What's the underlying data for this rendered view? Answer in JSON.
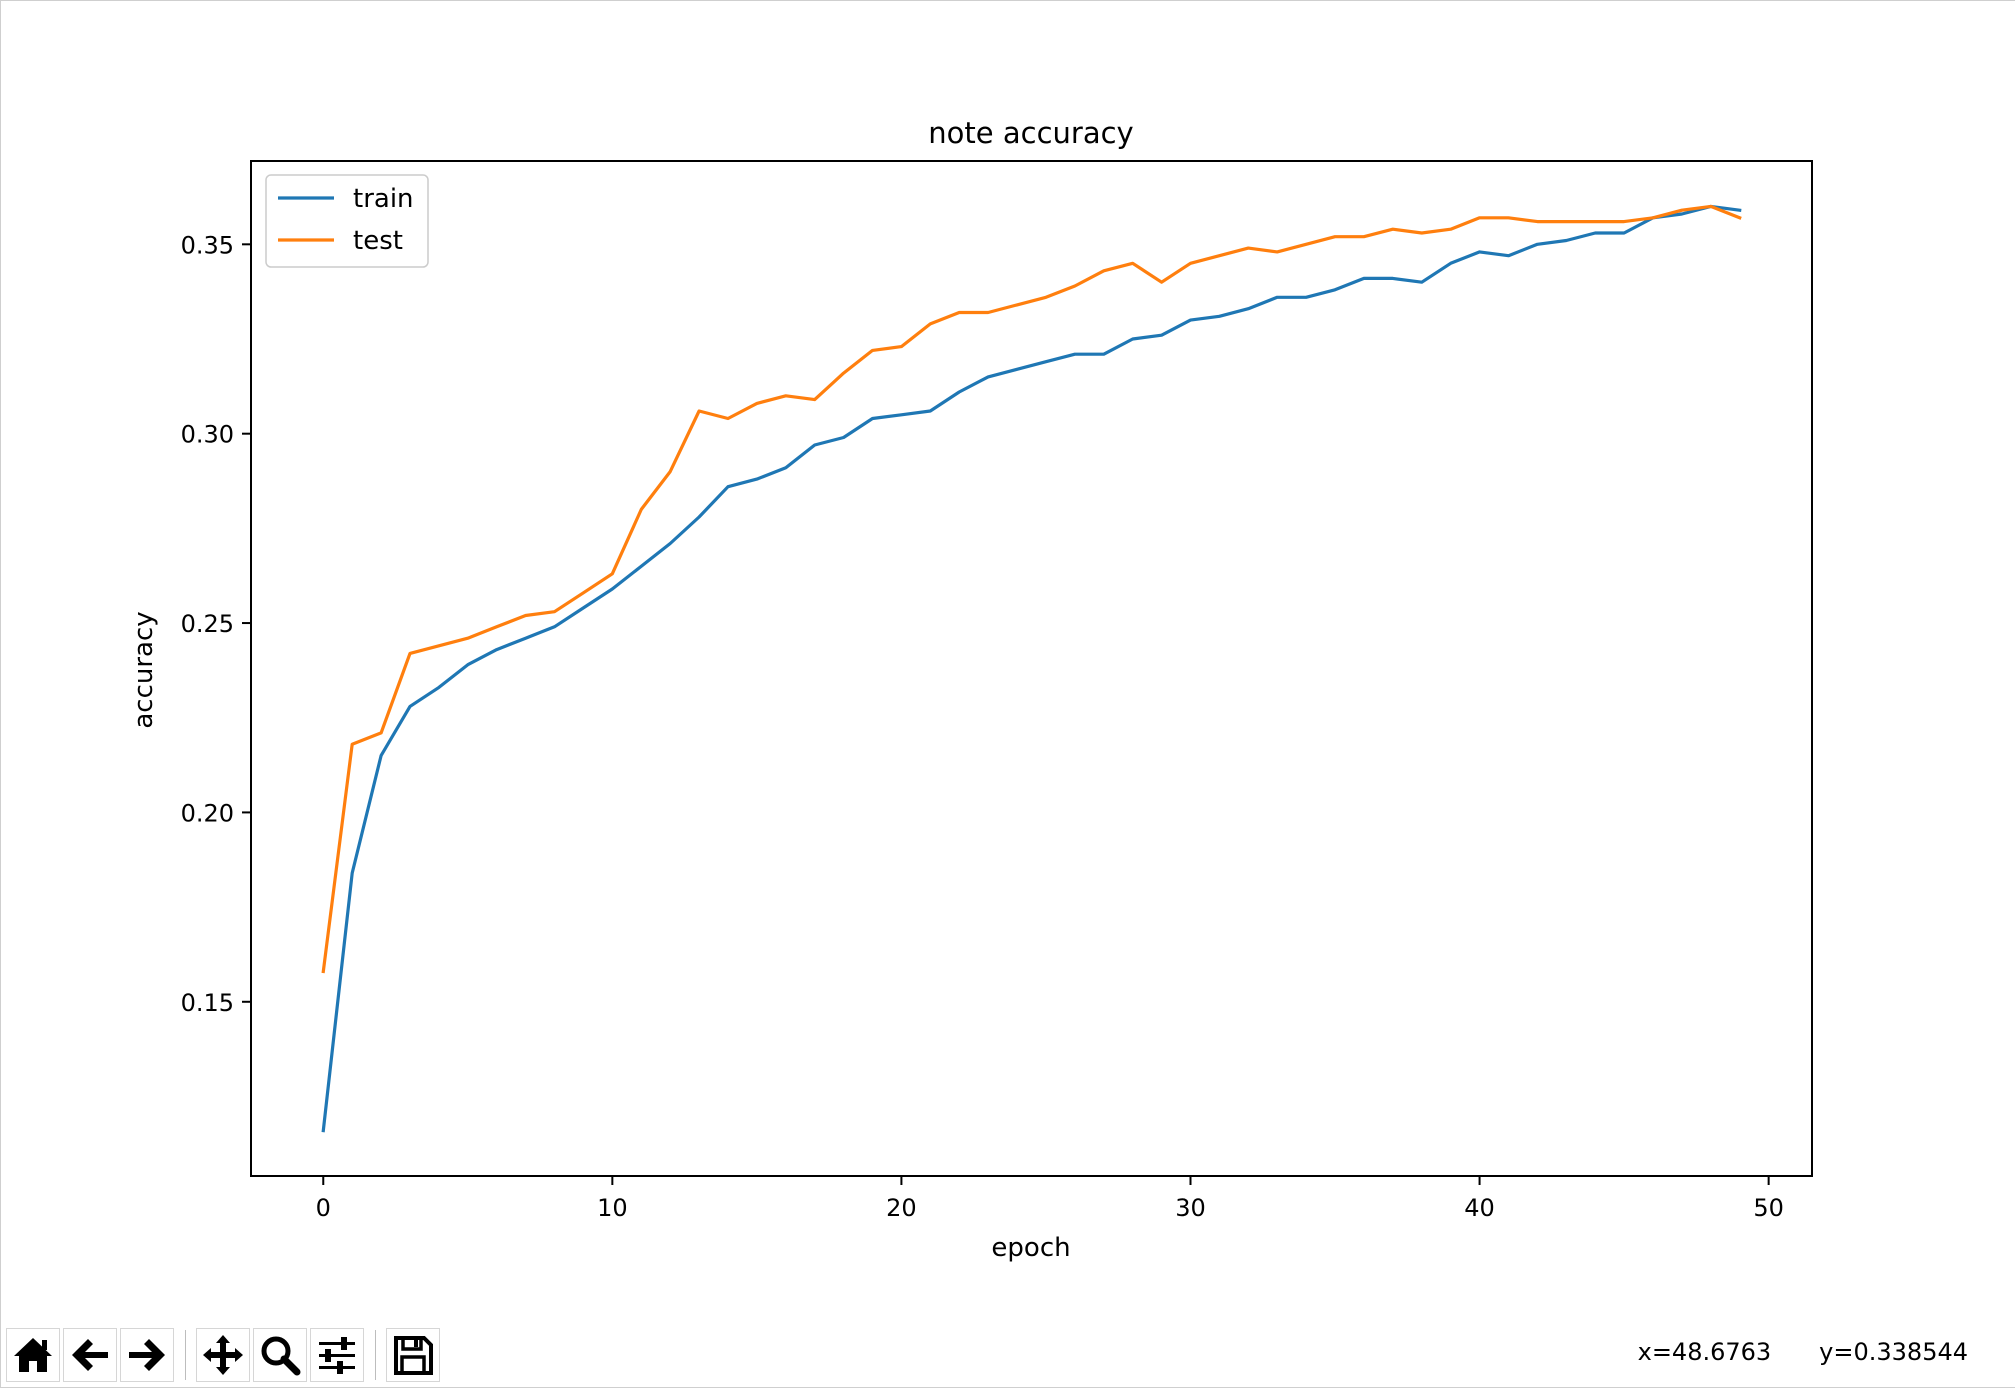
{
  "chart_data": {
    "type": "line",
    "title": "note accuracy",
    "xlabel": "epoch",
    "ylabel": "accuracy",
    "xlim": [
      -2.5,
      51.5
    ],
    "ylim": [
      0.104,
      0.372
    ],
    "xticks": [
      0,
      10,
      20,
      30,
      40,
      50
    ],
    "yticks": [
      0.15,
      0.2,
      0.25,
      0.3,
      0.35
    ],
    "xtick_labels": [
      "0",
      "10",
      "20",
      "30",
      "40",
      "50"
    ],
    "ytick_labels": [
      "0.15",
      "0.20",
      "0.25",
      "0.30",
      "0.35"
    ],
    "grid": false,
    "legend_position": "top-left",
    "x": [
      0,
      1,
      2,
      3,
      4,
      5,
      6,
      7,
      8,
      9,
      10,
      11,
      12,
      13,
      14,
      15,
      16,
      17,
      18,
      19,
      20,
      21,
      22,
      23,
      24,
      25,
      26,
      27,
      28,
      29,
      30,
      31,
      32,
      33,
      34,
      35,
      36,
      37,
      38,
      39,
      40,
      41,
      42,
      43,
      44,
      45,
      46,
      47,
      48,
      49
    ],
    "series": [
      {
        "name": "train",
        "color": "#1f77b4",
        "values": [
          0.116,
          0.184,
          0.215,
          0.228,
          0.233,
          0.239,
          0.243,
          0.246,
          0.249,
          0.254,
          0.259,
          0.265,
          0.271,
          0.278,
          0.286,
          0.288,
          0.291,
          0.297,
          0.299,
          0.304,
          0.305,
          0.306,
          0.311,
          0.315,
          0.317,
          0.319,
          0.321,
          0.321,
          0.325,
          0.326,
          0.33,
          0.331,
          0.333,
          0.336,
          0.336,
          0.338,
          0.341,
          0.341,
          0.34,
          0.345,
          0.348,
          0.347,
          0.35,
          0.351,
          0.353,
          0.353,
          0.357,
          0.358,
          0.36,
          0.359
        ]
      },
      {
        "name": "test",
        "color": "#ff7f0e",
        "values": [
          0.158,
          0.218,
          0.221,
          0.242,
          0.244,
          0.246,
          0.249,
          0.252,
          0.253,
          0.258,
          0.263,
          0.28,
          0.29,
          0.306,
          0.304,
          0.308,
          0.31,
          0.309,
          0.316,
          0.322,
          0.323,
          0.329,
          0.332,
          0.332,
          0.334,
          0.336,
          0.339,
          0.343,
          0.345,
          0.34,
          0.345,
          0.347,
          0.349,
          0.348,
          0.35,
          0.352,
          0.352,
          0.354,
          0.353,
          0.354,
          0.357,
          0.357,
          0.356,
          0.356,
          0.356,
          0.356,
          0.357,
          0.359,
          0.36,
          0.357
        ]
      }
    ]
  },
  "status": {
    "x_readout": "x=48.6763",
    "y_readout": "y=0.338544"
  },
  "toolbar": {
    "buttons": [
      {
        "name": "home-button",
        "icon": "home-icon"
      },
      {
        "name": "back-button",
        "icon": "arrow-left-icon"
      },
      {
        "name": "forward-button",
        "icon": "arrow-right-icon"
      },
      {
        "name": "pan-button",
        "icon": "move-icon"
      },
      {
        "name": "zoom-button",
        "icon": "magnifier-icon"
      },
      {
        "name": "configure-subplots-button",
        "icon": "sliders-icon"
      },
      {
        "name": "save-button",
        "icon": "floppy-disk-icon"
      }
    ]
  }
}
